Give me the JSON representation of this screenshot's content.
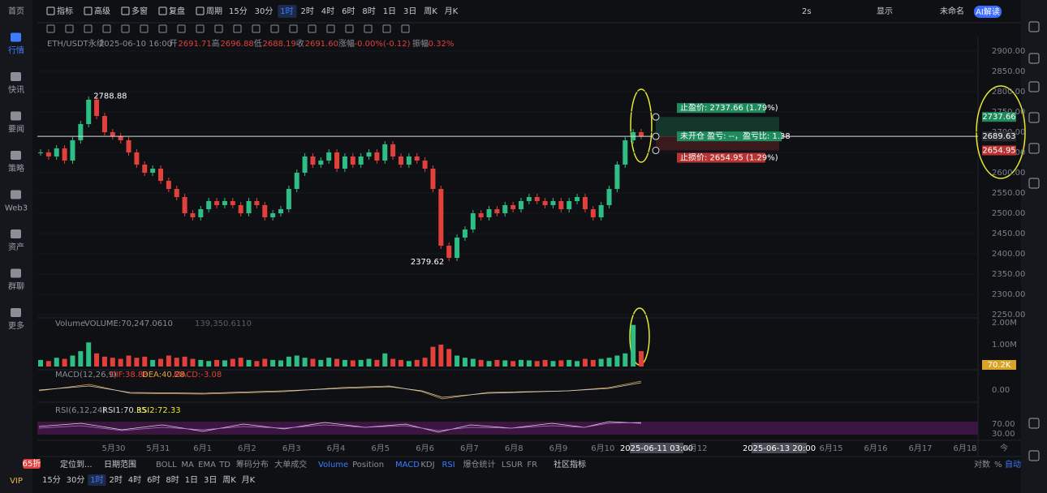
{
  "sidebar": {
    "items": [
      "首页",
      "行情",
      "快讯",
      "要闻",
      "策略",
      "Web3",
      "资产",
      "群聊",
      "更多"
    ],
    "active_index": 1,
    "badge": "65折",
    "vip": "VIP"
  },
  "toolbar": {
    "tools": [
      "指标",
      "高级",
      "多窗",
      "复盘",
      "周期"
    ],
    "periods": [
      "15分",
      "30分",
      "1时",
      "2时",
      "4时",
      "6时",
      "8时",
      "1日",
      "3日",
      "周K",
      "月K"
    ],
    "active_period_index": 2,
    "right": [
      "2s",
      "显示",
      "未命名"
    ],
    "ai_button": "AI解读"
  },
  "info": {
    "symbol": "ETH/USDT永续",
    "time": "2025-06-10 16:00",
    "fields": [
      {
        "label": "开",
        "value": "2691.71"
      },
      {
        "label": "高",
        "value": "2696.88"
      },
      {
        "label": "低",
        "value": "2688.19"
      },
      {
        "label": "收",
        "value": "2691.60"
      },
      {
        "label": "涨幅",
        "value": "-0.00%(-0.12)"
      },
      {
        "label": "振幅",
        "value": "0.32%"
      }
    ]
  },
  "price": {
    "ylim": [
      2250,
      2900
    ],
    "yticks": [
      {
        "value": 2900,
        "label": "2900.00"
      },
      {
        "value": 2850,
        "label": "2850.00"
      },
      {
        "value": 2800,
        "label": "2800.00"
      },
      {
        "value": 2750,
        "label": "2750.00"
      },
      {
        "value": 2700,
        "label": "2700.00"
      },
      {
        "value": 2650,
        "label": "2650.00"
      },
      {
        "value": 2600,
        "label": "2600.00"
      },
      {
        "value": 2550,
        "label": "2550.00"
      },
      {
        "value": 2500,
        "label": "2500.00"
      },
      {
        "value": 2450,
        "label": "2450.00"
      },
      {
        "value": 2400,
        "label": "2400.00"
      },
      {
        "value": 2350,
        "label": "2350.00"
      },
      {
        "value": 2300,
        "label": "2300.00"
      },
      {
        "value": 2250,
        "label": "2250.00"
      }
    ],
    "closes": [
      2650,
      2640,
      2660,
      2630,
      2680,
      2720,
      2780,
      2740,
      2700,
      2690,
      2680,
      2650,
      2620,
      2600,
      2610,
      2580,
      2560,
      2540,
      2500,
      2490,
      2510,
      2530,
      2520,
      2530,
      2520,
      2500,
      2530,
      2520,
      2490,
      2500,
      2510,
      2560,
      2600,
      2640,
      2620,
      2630,
      2650,
      2610,
      2640,
      2620,
      2640,
      2650,
      2630,
      2670,
      2640,
      2620,
      2640,
      2630,
      2610,
      2560,
      2420,
      2390,
      2440,
      2460,
      2500,
      2490,
      2510,
      2500,
      2520,
      2510,
      2530,
      2540,
      2530,
      2520,
      2530,
      2510,
      2530,
      2540,
      2510,
      2490,
      2520,
      2560,
      2620,
      2680,
      2700,
      2690
    ],
    "high_label": 2788.88,
    "low_label": 2379.62,
    "take_profit": 2737.66,
    "current": 2689.63,
    "stop_loss": 2654.95,
    "order": {
      "take_profit_text": "止盈价: 2737.66 (1.79%)",
      "status_text": "未开仓 盈亏: --，盈亏比: 1.38",
      "stop_loss_text": "止损价: 2654.95 (1.29%)"
    }
  },
  "volume": {
    "title": "Volume",
    "value_text": "VOLUME:70,247.0610",
    "ma_text": "139,350.6110",
    "ylim": [
      0,
      2000000
    ],
    "yticks": [
      {
        "value": 2000000,
        "label": "2.00M"
      },
      {
        "value": 1000000,
        "label": "1.00M"
      }
    ],
    "tag": "70.2K",
    "values": [
      300000,
      250000,
      400000,
      350000,
      500000,
      700000,
      1100000,
      600000,
      450000,
      400000,
      350000,
      500000,
      400000,
      450000,
      300000,
      350000,
      500000,
      400000,
      450000,
      350000,
      300000,
      250000,
      300000,
      280000,
      350000,
      400000,
      300000,
      250000,
      350000,
      300000,
      280000,
      450000,
      500000,
      400000,
      350000,
      300000,
      400000,
      350000,
      300000,
      280000,
      300000,
      350000,
      300000,
      600000,
      350000,
      300000,
      250000,
      300000,
      400000,
      900000,
      1000000,
      800000,
      500000,
      400000,
      350000,
      300000,
      250000,
      300000,
      280000,
      250000,
      300000,
      280000,
      250000,
      300000,
      250000,
      280000,
      300000,
      250000,
      350000,
      300000,
      350000,
      400000,
      500000,
      600000,
      1900000,
      700000
    ]
  },
  "macd": {
    "title": "MACD(12,26,9)",
    "dif": "DIF:38.88",
    "dea": "DEA:40.28",
    "macd": "MACD:-3.08",
    "tick": "0.00"
  },
  "rsi": {
    "title": "RSI(6,12,24)",
    "rsi1": "RSI1:70.35",
    "rsi2": "RSI2:72.33",
    "ticks": [
      "70.00",
      "30.00"
    ]
  },
  "x_axis": {
    "days": [
      "5月30",
      "5月31",
      "6月1",
      "6月2",
      "6月3",
      "6月4",
      "6月5",
      "6月6",
      "6月7",
      "6月8",
      "6月9",
      "6月10"
    ],
    "cursor_1": "2025-06-11 03:00",
    "day_12": "6月12",
    "cursor_2": "2025-06-13 20:00",
    "later": [
      "6月15",
      "6月16",
      "6月17",
      "6月18"
    ],
    "corner": "今"
  },
  "bottom": {
    "locate": "定位到...",
    "date_range": "日期范围",
    "overlays": [
      "BOLL",
      "MA",
      "EMA",
      "TD",
      "筹码分布",
      "大单成交"
    ],
    "indicators": [
      "Volume",
      "Position",
      "MACD",
      "KDJ",
      "RSI",
      "爆仓统计",
      "LSUR",
      "FR"
    ],
    "active_indicators": [
      0,
      2,
      4
    ],
    "community": "社区指标",
    "right": [
      "对数",
      "%",
      "自动"
    ],
    "periods": [
      "15分",
      "30分",
      "1时",
      "2时",
      "4时",
      "6时",
      "8时",
      "1日",
      "3日",
      "周K",
      "月K"
    ],
    "active_period_index": 2
  }
}
